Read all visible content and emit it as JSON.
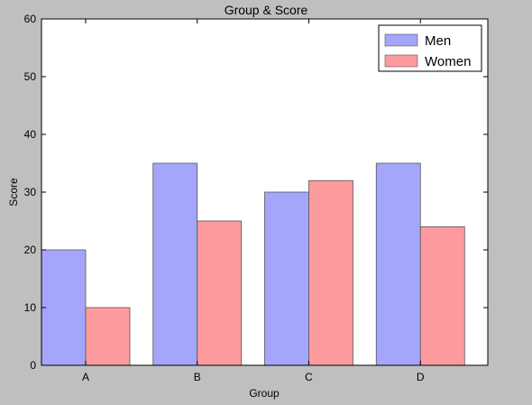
{
  "chart_data": {
    "type": "bar",
    "title": "Group & Score",
    "xlabel": "Group",
    "ylabel": "Score",
    "categories": [
      "A",
      "B",
      "C",
      "D"
    ],
    "series": [
      {
        "name": "Men",
        "values": [
          20,
          35,
          30,
          35
        ],
        "color": "#a4a6fc"
      },
      {
        "name": "Women",
        "values": [
          10,
          25,
          32,
          24
        ],
        "color": "#fd9a9e"
      }
    ],
    "ylim": [
      0,
      60
    ],
    "yticks": [
      0,
      10,
      20,
      30,
      40,
      50,
      60
    ],
    "grid": false,
    "legend": {
      "position": "top-right"
    },
    "colors": {
      "figure_background": "#bfbfbf",
      "axes_background": "#ffffff",
      "bar_edge": "#555555"
    }
  }
}
